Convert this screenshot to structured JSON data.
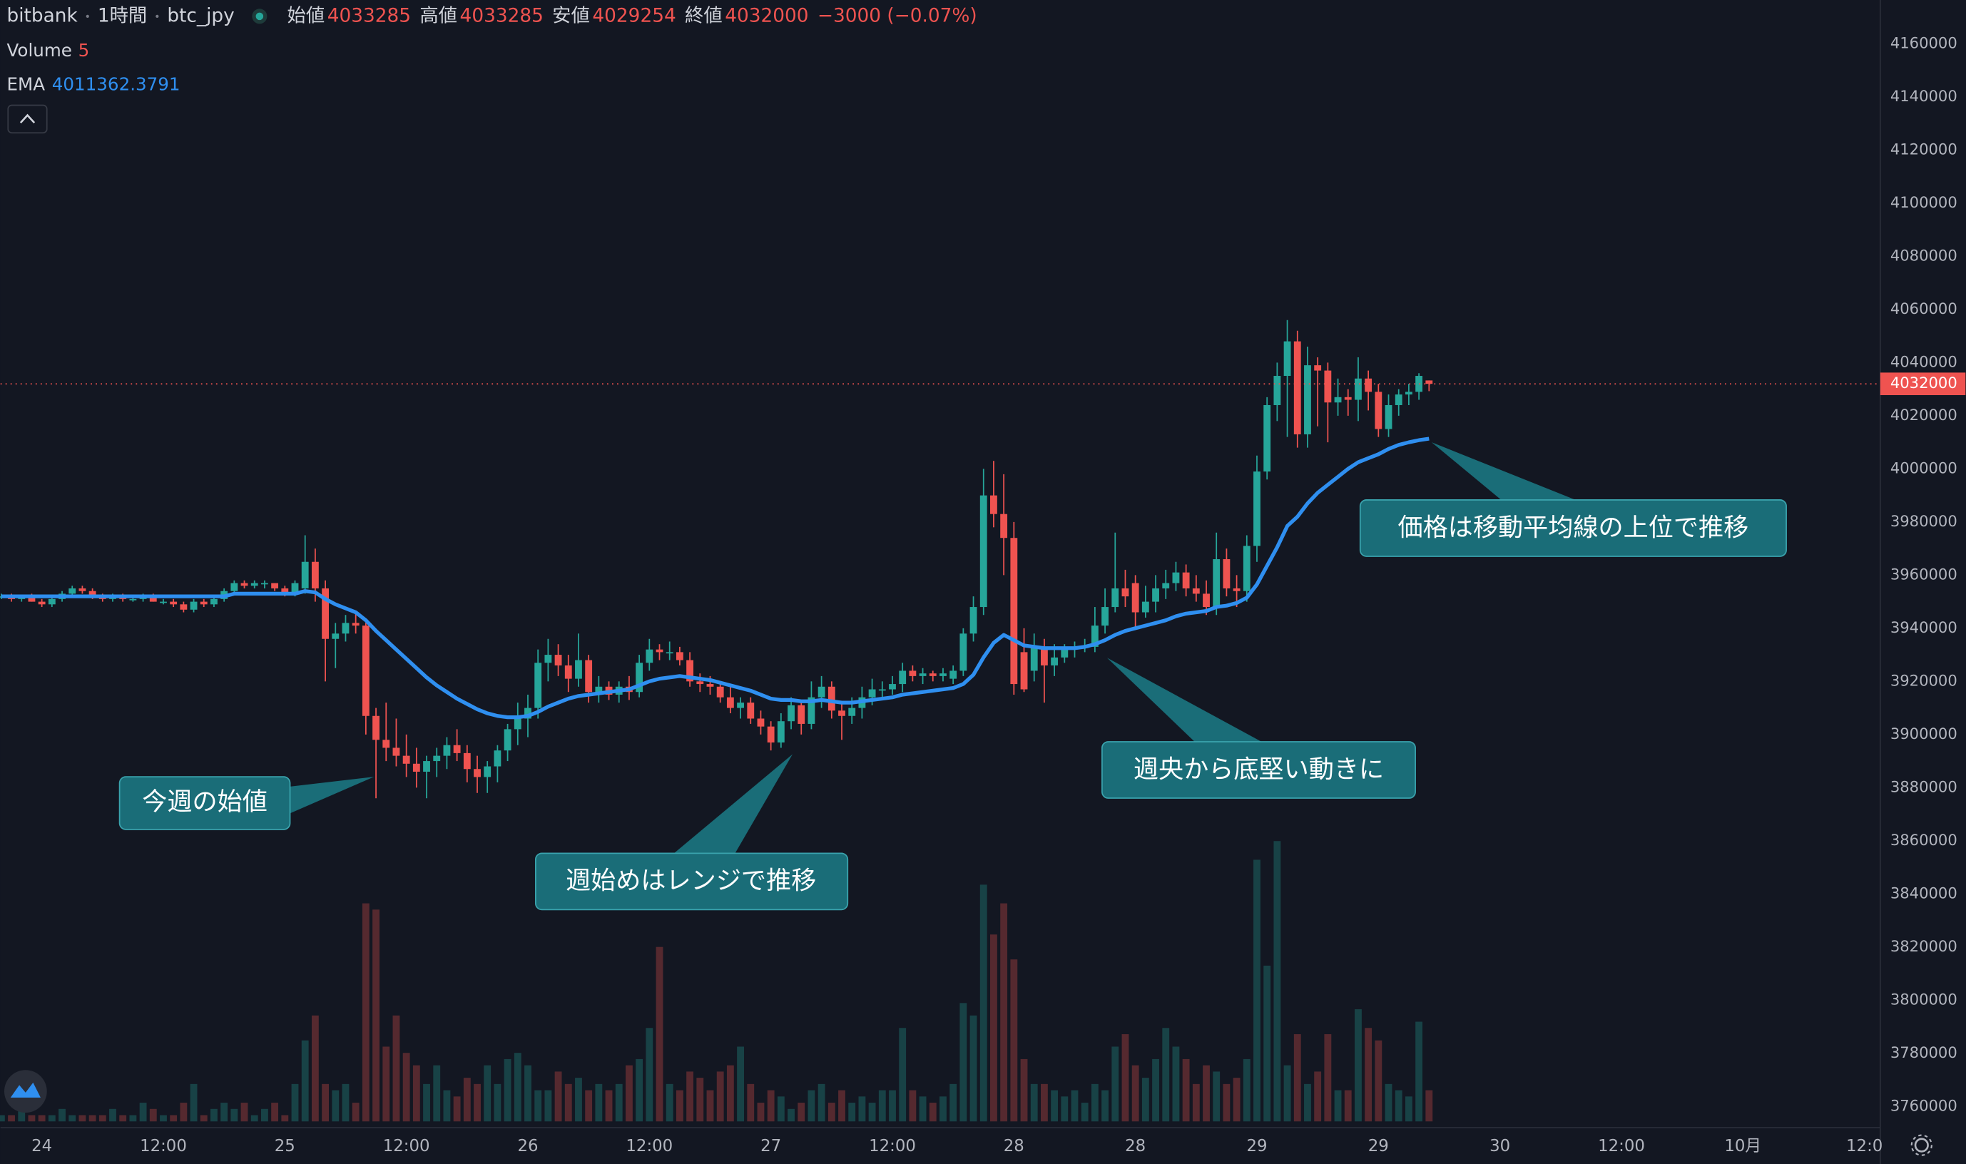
{
  "chart_data": {
    "type": "candlestick",
    "exchange": "bitbank",
    "interval": "1時間",
    "symbol": "btc_jpy",
    "ohlc_labels": [
      "始値",
      "高値",
      "安値",
      "終値"
    ],
    "change": "−3000 (−0.07%)",
    "volume_label": "Volume",
    "ema_label": "EMA",
    "up_color": "#26a69a",
    "down_color": "#ef5350",
    "ema_color": "#2f8ff0",
    "ylim": [
      3752000,
      4176500
    ],
    "yticks": [
      3760000,
      3780000,
      3800000,
      3820000,
      3840000,
      3860000,
      3880000,
      3900000,
      3920000,
      3940000,
      3960000,
      3980000,
      4000000,
      4020000,
      4040000,
      4060000,
      4080000,
      4100000,
      4120000,
      4140000,
      4160000
    ],
    "xlim": [
      -0.08,
      185.56
    ],
    "xticks": [
      {
        "value": 4,
        "label": "24"
      },
      {
        "value": 16,
        "label": "12:00"
      },
      {
        "value": 28,
        "label": "25"
      },
      {
        "value": 40,
        "label": "12:00"
      },
      {
        "value": 52,
        "label": "26"
      },
      {
        "value": 64,
        "label": "12:00"
      },
      {
        "value": 76,
        "label": "27"
      },
      {
        "value": 88,
        "label": "12:00"
      },
      {
        "value": 100,
        "label": "28"
      },
      {
        "value": 112,
        "label": "28"
      },
      {
        "value": 124,
        "label": "29"
      },
      {
        "value": 136,
        "label": "29"
      },
      {
        "value": 148,
        "label": "30"
      },
      {
        "value": 160,
        "label": "12:00"
      },
      {
        "value": 172,
        "label": "10月"
      },
      {
        "value": 184,
        "label": "12:0"
      }
    ],
    "volume_ylim": [
      0,
      180
    ],
    "grid": false,
    "candles": [
      [
        3952000,
        3953000,
        3951000,
        3952000
      ],
      [
        3952000,
        3953000,
        3950000,
        3951000
      ],
      [
        3951000,
        3952000,
        3950000,
        3952000
      ],
      [
        3952000,
        3953000,
        3950000,
        3950000
      ],
      [
        3950000,
        3951000,
        3948000,
        3949000
      ],
      [
        3949000,
        3952000,
        3948000,
        3951000
      ],
      [
        3951000,
        3954000,
        3950000,
        3953000
      ],
      [
        3953000,
        3956000,
        3952000,
        3955000
      ],
      [
        3955000,
        3956000,
        3953000,
        3954000
      ],
      [
        3954000,
        3955000,
        3951000,
        3952000
      ],
      [
        3952000,
        3953000,
        3950000,
        3951000
      ],
      [
        3951000,
        3953000,
        3950000,
        3952000
      ],
      [
        3952000,
        3953000,
        3950000,
        3951000
      ],
      [
        3951000,
        3952000,
        3950000,
        3951000
      ],
      [
        3951000,
        3953000,
        3950000,
        3952000
      ],
      [
        3952000,
        3953000,
        3950000,
        3950000
      ],
      [
        3950000,
        3951000,
        3949000,
        3950000
      ],
      [
        3950000,
        3951000,
        3948000,
        3949000
      ],
      [
        3949000,
        3950000,
        3946000,
        3947000
      ],
      [
        3947000,
        3951000,
        3946000,
        3950000
      ],
      [
        3950000,
        3951000,
        3948000,
        3949000
      ],
      [
        3949000,
        3952000,
        3948000,
        3951000
      ],
      [
        3951000,
        3955000,
        3950000,
        3954000
      ],
      [
        3954000,
        3958000,
        3953000,
        3957000
      ],
      [
        3957000,
        3958000,
        3955000,
        3956000
      ],
      [
        3956000,
        3958000,
        3955000,
        3957000
      ],
      [
        3957000,
        3958000,
        3955000,
        3957000
      ],
      [
        3957000,
        3957000,
        3954000,
        3955000
      ],
      [
        3955000,
        3956000,
        3952000,
        3953000
      ],
      [
        3953000,
        3958000,
        3952000,
        3957000
      ],
      [
        3955000,
        3975000,
        3953000,
        3965000
      ],
      [
        3965000,
        3970000,
        3950000,
        3955000
      ],
      [
        3955000,
        3958000,
        3920000,
        3936000
      ],
      [
        3936000,
        3942000,
        3925000,
        3938000
      ],
      [
        3938000,
        3945000,
        3935000,
        3942000
      ],
      [
        3942000,
        3946000,
        3938000,
        3941000
      ],
      [
        3941000,
        3942000,
        3900000,
        3907000
      ],
      [
        3907000,
        3910000,
        3876000,
        3898000
      ],
      [
        3898000,
        3912000,
        3890000,
        3895000
      ],
      [
        3895000,
        3906000,
        3888000,
        3892000
      ],
      [
        3892000,
        3900000,
        3884000,
        3889000
      ],
      [
        3889000,
        3895000,
        3880000,
        3886000
      ],
      [
        3886000,
        3892000,
        3876000,
        3890000
      ],
      [
        3890000,
        3895000,
        3884000,
        3892000
      ],
      [
        3892000,
        3899000,
        3887000,
        3896000
      ],
      [
        3896000,
        3902000,
        3890000,
        3893000
      ],
      [
        3893000,
        3896000,
        3882000,
        3887000
      ],
      [
        3887000,
        3892000,
        3878000,
        3884000
      ],
      [
        3884000,
        3890000,
        3878000,
        3888000
      ],
      [
        3888000,
        3896000,
        3882000,
        3894000
      ],
      [
        3894000,
        3904000,
        3890000,
        3902000
      ],
      [
        3902000,
        3912000,
        3896000,
        3906000
      ],
      [
        3906000,
        3915000,
        3899000,
        3910000
      ],
      [
        3910000,
        3932000,
        3906000,
        3927000
      ],
      [
        3927000,
        3936000,
        3920000,
        3930000
      ],
      [
        3930000,
        3934000,
        3922000,
        3926000
      ],
      [
        3926000,
        3930000,
        3916000,
        3921000
      ],
      [
        3921000,
        3938000,
        3918000,
        3928000
      ],
      [
        3928000,
        3930000,
        3912000,
        3916000
      ],
      [
        3916000,
        3922000,
        3912000,
        3918000
      ],
      [
        3918000,
        3920000,
        3913000,
        3915000
      ],
      [
        3915000,
        3920000,
        3912000,
        3918000
      ],
      [
        3918000,
        3922000,
        3913000,
        3916000
      ],
      [
        3916000,
        3930000,
        3914000,
        3927000
      ],
      [
        3927000,
        3936000,
        3924000,
        3932000
      ],
      [
        3932000,
        3934000,
        3928000,
        3931000
      ],
      [
        3931000,
        3935000,
        3928000,
        3931000
      ],
      [
        3931000,
        3933000,
        3926000,
        3928000
      ],
      [
        3928000,
        3931000,
        3918000,
        3920000
      ],
      [
        3920000,
        3923000,
        3916000,
        3919000
      ],
      [
        3919000,
        3922000,
        3915000,
        3918000
      ],
      [
        3918000,
        3920000,
        3912000,
        3914000
      ],
      [
        3914000,
        3918000,
        3908000,
        3910000
      ],
      [
        3910000,
        3914000,
        3906000,
        3912000
      ],
      [
        3912000,
        3914000,
        3904000,
        3906000
      ],
      [
        3906000,
        3909000,
        3900000,
        3903000
      ],
      [
        3903000,
        3905000,
        3894000,
        3897000
      ],
      [
        3897000,
        3908000,
        3895000,
        3905000
      ],
      [
        3905000,
        3914000,
        3902000,
        3911000
      ],
      [
        3911000,
        3913000,
        3900000,
        3904000
      ],
      [
        3904000,
        3920000,
        3902000,
        3914000
      ],
      [
        3914000,
        3922000,
        3910000,
        3918000
      ],
      [
        3918000,
        3920000,
        3906000,
        3909000
      ],
      [
        3909000,
        3912000,
        3898000,
        3907000
      ],
      [
        3907000,
        3914000,
        3904000,
        3910000
      ],
      [
        3910000,
        3918000,
        3906000,
        3914000
      ],
      [
        3914000,
        3921000,
        3911000,
        3917000
      ],
      [
        3917000,
        3920000,
        3914000,
        3917000
      ],
      [
        3917000,
        3922000,
        3915000,
        3919000
      ],
      [
        3919000,
        3927000,
        3916000,
        3924000
      ],
      [
        3924000,
        3926000,
        3920000,
        3922000
      ],
      [
        3922000,
        3925000,
        3919000,
        3923000
      ],
      [
        3923000,
        3924000,
        3920000,
        3922000
      ],
      [
        3922000,
        3925000,
        3920000,
        3923000
      ],
      [
        3921000,
        3926000,
        3919000,
        3924000
      ],
      [
        3924000,
        3940000,
        3922000,
        3938000
      ],
      [
        3938000,
        3952000,
        3935000,
        3948000
      ],
      [
        3948000,
        4000000,
        3945000,
        3990000
      ],
      [
        3990000,
        4003000,
        3978000,
        3983000
      ],
      [
        3983000,
        3998000,
        3960000,
        3974000
      ],
      [
        3974000,
        3980000,
        3915000,
        3919000
      ],
      [
        3931000,
        3940000,
        3916000,
        3917000
      ],
      [
        3924000,
        3938000,
        3920000,
        3933000
      ],
      [
        3933000,
        3936000,
        3912000,
        3926000
      ],
      [
        3926000,
        3934000,
        3922000,
        3929000
      ],
      [
        3929000,
        3934000,
        3927000,
        3932000
      ],
      [
        3932000,
        3935000,
        3929000,
        3933000
      ],
      [
        3933000,
        3936000,
        3931000,
        3933000
      ],
      [
        3933000,
        3948000,
        3931000,
        3941000
      ],
      [
        3941000,
        3955000,
        3938000,
        3948000
      ],
      [
        3948000,
        3976000,
        3946000,
        3955000
      ],
      [
        3955000,
        3962000,
        3948000,
        3952000
      ],
      [
        3957000,
        3960000,
        3940000,
        3946000
      ],
      [
        3946000,
        3956000,
        3944000,
        3950000
      ],
      [
        3950000,
        3960000,
        3946000,
        3955000
      ],
      [
        3955000,
        3962000,
        3951000,
        3957000
      ],
      [
        3957000,
        3965000,
        3954000,
        3961000
      ],
      [
        3961000,
        3964000,
        3952000,
        3955000
      ],
      [
        3955000,
        3960000,
        3950000,
        3953000
      ],
      [
        3953000,
        3958000,
        3945000,
        3948000
      ],
      [
        3948000,
        3976000,
        3945000,
        3966000
      ],
      [
        3966000,
        3970000,
        3952000,
        3955000
      ],
      [
        3955000,
        3960000,
        3948000,
        3954000
      ],
      [
        3954000,
        3975000,
        3950000,
        3971000
      ],
      [
        3971000,
        4005000,
        3965000,
        3999000
      ],
      [
        3999000,
        4027000,
        3996000,
        4024000
      ],
      [
        4024000,
        4040000,
        4018000,
        4035000
      ],
      [
        4035000,
        4056000,
        4012000,
        4048000
      ],
      [
        4048000,
        4052000,
        4008000,
        4013000
      ],
      [
        4013000,
        4046000,
        4008000,
        4039000
      ],
      [
        4039000,
        4042000,
        4016000,
        4037000
      ],
      [
        4037000,
        4040000,
        4010000,
        4025000
      ],
      [
        4025000,
        4034000,
        4020000,
        4027000
      ],
      [
        4027000,
        4030000,
        4020000,
        4026000
      ],
      [
        4026000,
        4042000,
        4018000,
        4034000
      ],
      [
        4034000,
        4037000,
        4022000,
        4029000
      ],
      [
        4029000,
        4032000,
        4012000,
        4015000
      ],
      [
        4015000,
        4028000,
        4012000,
        4024000
      ],
      [
        4024000,
        4030000,
        4020000,
        4028000
      ],
      [
        4028000,
        4032000,
        4024000,
        4029000
      ],
      [
        4029000,
        4036000,
        4026000,
        4035000
      ],
      [
        4033285,
        4033285,
        4029254,
        4032000
      ]
    ],
    "volume": [
      1,
      1,
      2,
      1,
      1,
      1,
      2,
      1,
      1,
      1,
      1,
      2,
      1,
      1,
      3,
      2,
      1,
      1,
      3,
      6,
      1,
      2,
      3,
      2,
      3,
      1,
      2,
      3,
      1,
      6,
      13,
      17,
      6,
      5,
      6,
      3,
      35,
      34,
      12,
      17,
      11,
      9,
      6,
      9,
      5,
      4,
      7,
      6,
      9,
      6,
      10,
      11,
      9,
      5,
      5,
      8,
      6,
      7,
      5,
      6,
      5,
      6,
      9,
      10,
      15,
      28,
      6,
      5,
      8,
      7,
      5,
      8,
      9,
      12,
      6,
      3,
      5,
      4,
      2,
      3,
      5,
      6,
      3,
      5,
      3,
      4,
      3,
      5,
      5,
      15,
      5,
      4,
      3,
      4,
      6,
      19,
      17,
      38,
      30,
      35,
      26,
      10,
      6,
      6,
      5,
      4,
      5,
      3,
      6,
      5,
      12,
      14,
      9,
      7,
      10,
      15,
      12,
      10,
      6,
      9,
      8,
      6,
      7,
      10,
      42,
      25,
      45,
      9,
      14,
      6,
      8,
      14,
      5,
      5,
      18,
      15,
      13,
      6,
      5,
      4,
      16,
      5
    ],
    "ema": [
      3952000,
      3952000,
      3952000,
      3952000,
      3952000,
      3952000,
      3952000,
      3952000,
      3952000,
      3952000,
      3952000,
      3952000,
      3952000,
      3952000,
      3952000,
      3952000,
      3952000,
      3952000,
      3952000,
      3952000,
      3952000,
      3952000,
      3952000,
      3953000,
      3953000,
      3953000,
      3953000,
      3953000,
      3953000,
      3953000,
      3954000,
      3953500,
      3951000,
      3949000,
      3947500,
      3946000,
      3943000,
      3939000,
      3935500,
      3932000,
      3928500,
      3925000,
      3921500,
      3918500,
      3916000,
      3913500,
      3911500,
      3909500,
      3908000,
      3907000,
      3906500,
      3906500,
      3907000,
      3908500,
      3910500,
      3912000,
      3913500,
      3914500,
      3915000,
      3915500,
      3916000,
      3916500,
      3917000,
      3918500,
      3920000,
      3921000,
      3921500,
      3922000,
      3921500,
      3921000,
      3920500,
      3919500,
      3918500,
      3917500,
      3916500,
      3915000,
      3913500,
      3913000,
      3913000,
      3912500,
      3912500,
      3913000,
      3912500,
      3912000,
      3912000,
      3912500,
      3913000,
      3913500,
      3914000,
      3915000,
      3915500,
      3916000,
      3916500,
      3917000,
      3917500,
      3919000,
      3922500,
      3929000,
      3934500,
      3937500,
      3935500,
      3933500,
      3933000,
      3932500,
      3932500,
      3932500,
      3932500,
      3933000,
      3934000,
      3935500,
      3937500,
      3939000,
      3940000,
      3941000,
      3942000,
      3943000,
      3944500,
      3945500,
      3946000,
      3946500,
      3948000,
      3948500,
      3949500,
      3951500,
      3956500,
      3963500,
      3970500,
      3978500,
      3982000,
      3987000,
      3991000,
      3994000,
      3997000,
      4000000,
      4002500,
      4004000,
      4005500,
      4007500,
      4009000,
      4010000,
      4010800,
      4011362.3791
    ],
    "annotations": [
      "今週の始値",
      "週始めはレンジで推移",
      "週央から底堅い動きに",
      "価格は移動平均線の上位で推移"
    ]
  }
}
